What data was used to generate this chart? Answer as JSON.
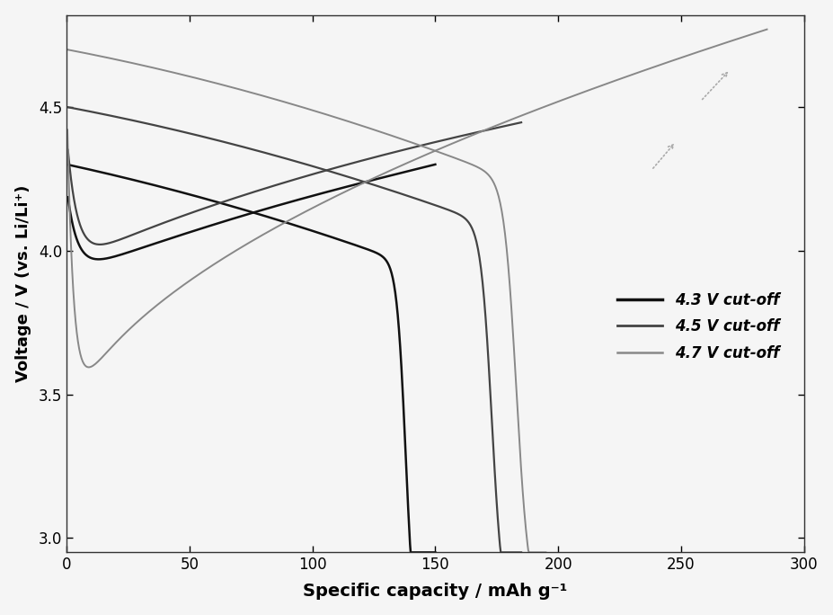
{
  "title": "",
  "xlabel": "Specific capacity / mAh g⁻¹",
  "ylabel": "Voltage / V (vs. Li/Li⁺)",
  "xlim": [
    0,
    300
  ],
  "ylim": [
    2.95,
    4.82
  ],
  "xticks": [
    0,
    50,
    100,
    150,
    200,
    250,
    300
  ],
  "yticks": [
    3.0,
    3.5,
    4.0,
    4.5
  ],
  "legend_entries": [
    "4.3 V cut-off",
    "4.5 V cut-off",
    "4.7 V cut-off"
  ],
  "color_43": "#111111",
  "color_45": "#444444",
  "color_47": "#888888",
  "lw_43": 1.8,
  "lw_45": 1.6,
  "lw_47": 1.4,
  "background_color": "#f5f5f5"
}
